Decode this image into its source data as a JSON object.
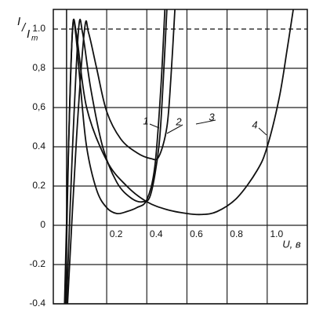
{
  "chart_data": {
    "type": "line",
    "x_label": "U, в",
    "y_label": {
      "numerator": "I",
      "denominator": "I",
      "subscript": "m"
    },
    "xlim": [
      -0.066,
      1.2
    ],
    "ylim": [
      -0.4,
      1.1
    ],
    "xticks": [
      0.2,
      0.4,
      0.6,
      0.8,
      {
        "value": 1,
        "label": "1.0"
      }
    ],
    "yticks": [
      {
        "value": 1,
        "label": "1.0"
      },
      {
        "value": 0.8,
        "label": "0,8"
      },
      {
        "value": 0.6,
        "label": "0,6"
      },
      0.4,
      0.2,
      0,
      -0.2,
      -0.4
    ],
    "grid": true,
    "reference_line": 1,
    "series": [
      {
        "name": "1",
        "color": "#111111",
        "x": [
          -0.005,
          0.01,
          0.03,
          0.045,
          0.07,
          0.1,
          0.15,
          0.2,
          0.25,
          0.3,
          0.35,
          0.4,
          0.44,
          0.47,
          0.49
        ],
        "values": [
          -0.4,
          0.4,
          1.0,
          0.98,
          0.7,
          0.4,
          0.18,
          0.09,
          0.06,
          0.07,
          0.09,
          0.13,
          0.3,
          0.7,
          1.1
        ]
      },
      {
        "name": "2",
        "color": "#111111",
        "x": [
          0.0,
          0.03,
          0.06,
          0.08,
          0.12,
          0.18,
          0.25,
          0.32,
          0.38,
          0.42,
          0.46,
          0.48,
          0.5
        ],
        "values": [
          -0.4,
          0.4,
          1.0,
          0.98,
          0.7,
          0.4,
          0.22,
          0.14,
          0.12,
          0.16,
          0.4,
          0.7,
          1.1
        ]
      },
      {
        "name": "3",
        "color": "#111111",
        "x": [
          0.005,
          0.05,
          0.09,
          0.11,
          0.15,
          0.2,
          0.27,
          0.35,
          0.42,
          0.46,
          0.5,
          0.52,
          0.54
        ],
        "values": [
          -0.4,
          0.45,
          1.0,
          0.98,
          0.8,
          0.58,
          0.44,
          0.37,
          0.34,
          0.35,
          0.5,
          0.75,
          1.1
        ]
      },
      {
        "name": "4",
        "color": "#111111",
        "x": [
          -0.01,
          0.01,
          0.03,
          0.05,
          0.1,
          0.2,
          0.3,
          0.4,
          0.5,
          0.6,
          0.67,
          0.75,
          0.85,
          0.95,
          1.0,
          1.06,
          1.1,
          1.13
        ],
        "values": [
          -0.4,
          0.4,
          1.0,
          0.97,
          0.6,
          0.33,
          0.2,
          0.12,
          0.08,
          0.06,
          0.055,
          0.07,
          0.14,
          0.28,
          0.4,
          0.65,
          0.9,
          1.1
        ]
      }
    ]
  }
}
